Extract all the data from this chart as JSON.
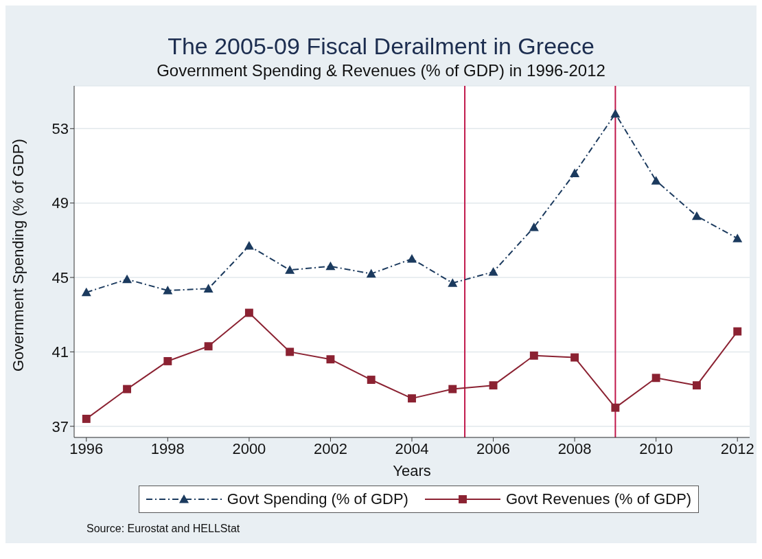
{
  "chart_data": {
    "type": "line",
    "title": "The 2005-09 Fiscal Derailment in Greece",
    "subtitle": "Government Spending & Revenues (% of GDP) in 1996-2012",
    "xlabel": "Years",
    "ylabel": "Government Spending (% of GDP)",
    "annotations": [
      "Source: Eurostat and HELLStat"
    ],
    "x": [
      1996,
      1997,
      1998,
      1999,
      2000,
      2001,
      2002,
      2003,
      2004,
      2005,
      2006,
      2007,
      2008,
      2009,
      2010,
      2011,
      2012
    ],
    "series": [
      {
        "name": "Govt Spending (% of GDP)",
        "color": "#1b3a5e",
        "marker": "triangle",
        "line_style": "dashed",
        "values": [
          44.2,
          44.9,
          44.3,
          44.4,
          46.7,
          45.4,
          45.6,
          45.2,
          46.0,
          44.7,
          45.3,
          47.7,
          50.6,
          53.8,
          50.2,
          48.3,
          47.1
        ]
      },
      {
        "name": "Govt Revenues (% of GDP)",
        "color": "#8b2232",
        "marker": "square",
        "line_style": "solid",
        "values": [
          37.4,
          39.0,
          40.5,
          41.3,
          43.1,
          41.0,
          40.6,
          39.5,
          38.5,
          39.0,
          39.2,
          40.8,
          40.7,
          38.0,
          39.6,
          39.2,
          42.1
        ]
      }
    ],
    "xlim": [
      1995.7,
      2012.3
    ],
    "xticks": [
      1996,
      1998,
      2000,
      2002,
      2004,
      2006,
      2008,
      2010,
      2012
    ],
    "ylim": [
      36.4,
      55.3
    ],
    "yticks": [
      37,
      41,
      45,
      49,
      53
    ],
    "ref_lines": [
      {
        "axis": "x",
        "value": 2005.3,
        "color": "#c0174a"
      },
      {
        "axis": "x",
        "value": 2009,
        "color": "#c0174a"
      }
    ],
    "grid": "y",
    "legend": "bottom"
  }
}
